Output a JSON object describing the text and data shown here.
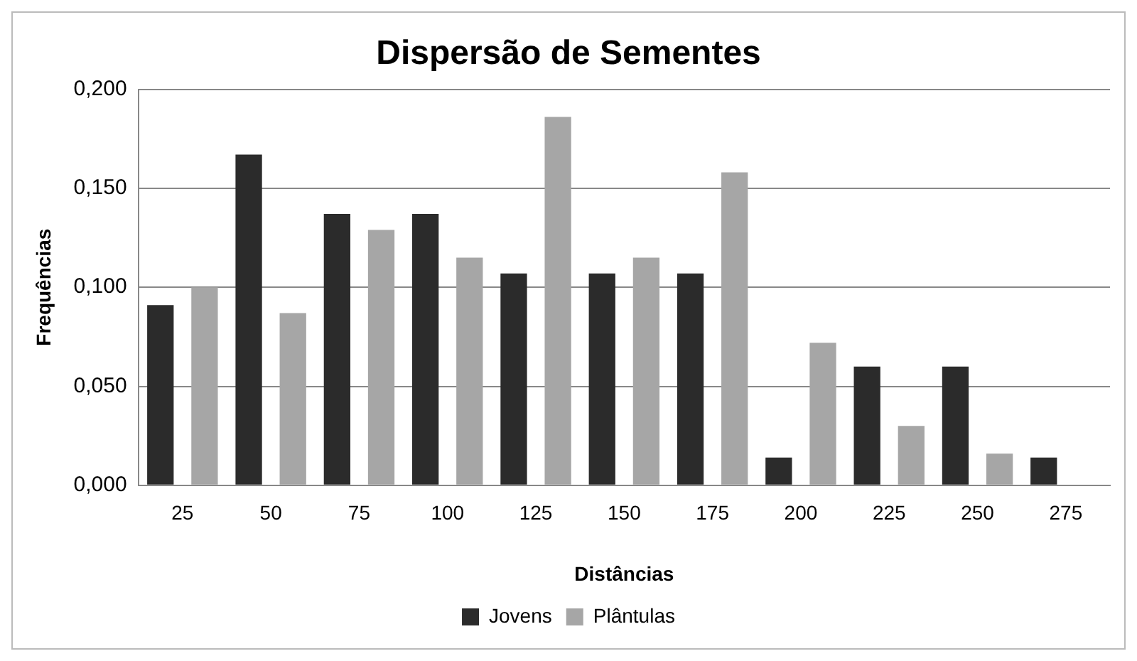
{
  "chart_data": {
    "type": "bar",
    "title": "Dispersão de Sementes",
    "xlabel": "Distâncias",
    "ylabel": "Frequências",
    "categories": [
      "25",
      "50",
      "75",
      "100",
      "125",
      "150",
      "175",
      "200",
      "225",
      "250",
      "275"
    ],
    "series": [
      {
        "name": "Jovens",
        "color": "#2b2b2b",
        "values": [
          0.091,
          0.167,
          0.137,
          0.137,
          0.107,
          0.107,
          0.107,
          0.014,
          0.06,
          0.06,
          0.014
        ]
      },
      {
        "name": "Plântulas",
        "color": "#a6a6a6",
        "values": [
          0.1,
          0.087,
          0.129,
          0.115,
          0.186,
          0.115,
          0.158,
          0.072,
          0.03,
          0.016,
          null
        ]
      }
    ],
    "ylim": [
      0,
      0.2
    ],
    "yticks": [
      {
        "value": 0,
        "label": "0,000"
      },
      {
        "value": 0.05,
        "label": "0,050"
      },
      {
        "value": 0.1,
        "label": "0,100"
      },
      {
        "value": 0.15,
        "label": "0,150"
      },
      {
        "value": 0.2,
        "label": "0,200"
      }
    ],
    "grid": "y",
    "legend": "bottom"
  }
}
